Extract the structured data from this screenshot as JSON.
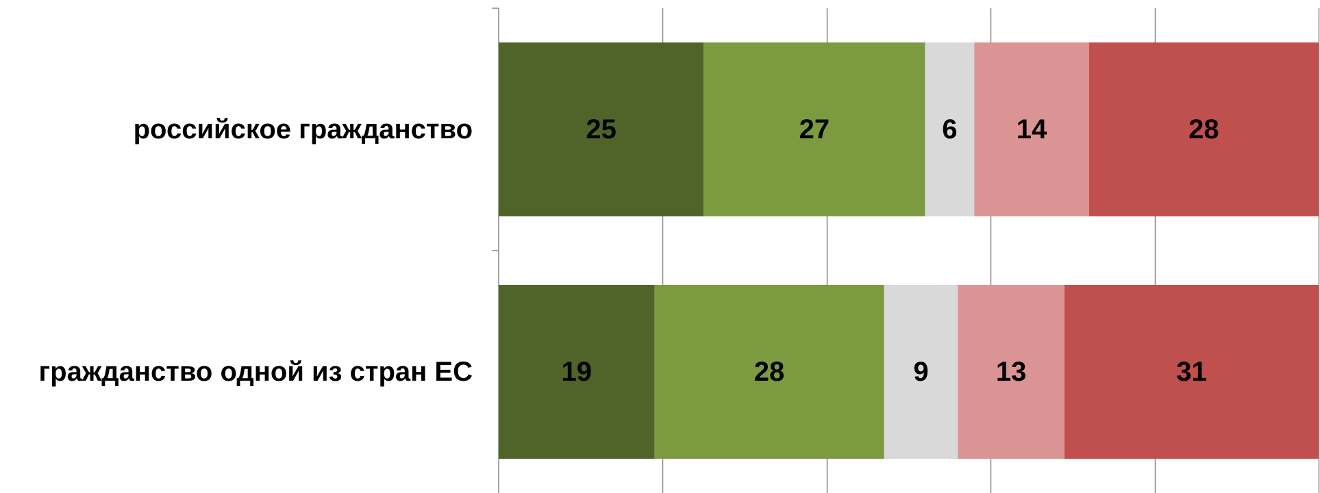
{
  "chart_data": {
    "type": "bar",
    "orientation": "horizontal",
    "stacked": true,
    "categories": [
      "российское гражданство",
      "гражданство одной из стран ЕС"
    ],
    "series": [
      {
        "values": [
          25,
          19
        ],
        "color": "#506429"
      },
      {
        "values": [
          27,
          28
        ],
        "color": "#7c9b41"
      },
      {
        "values": [
          6,
          9
        ],
        "color": "#d9d9d9"
      },
      {
        "values": [
          14,
          13
        ],
        "color": "#db9494"
      },
      {
        "values": [
          28,
          31
        ],
        "color": "#c0504d"
      }
    ],
    "xlim": [
      0,
      100
    ],
    "x_gridlines": [
      0,
      20,
      40,
      60,
      80,
      100
    ],
    "grid": true,
    "legend": "none",
    "axis_color": "#888888"
  }
}
